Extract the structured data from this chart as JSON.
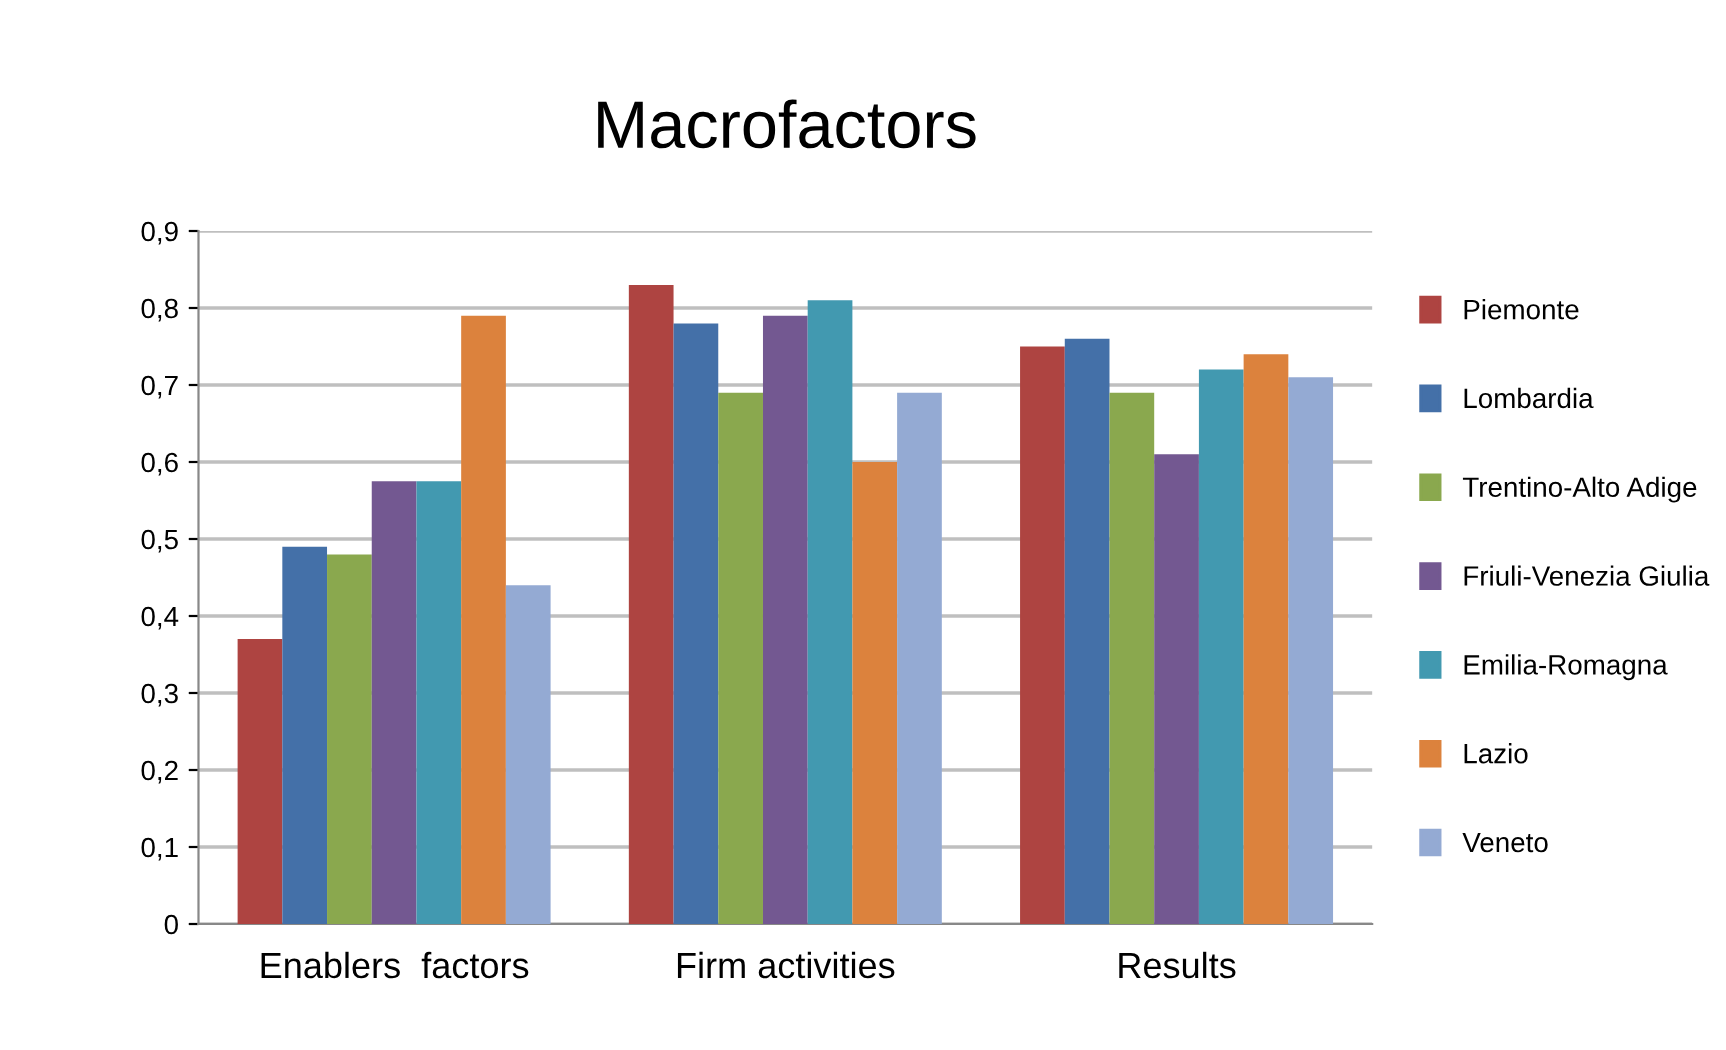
{
  "chart_data": {
    "type": "bar",
    "title": "Macrofactors",
    "categories": [
      "Enablers  factors",
      "Firm activities",
      "Results"
    ],
    "series": [
      {
        "name": "Piemonte",
        "color": "#ae4441",
        "values": [
          0.37,
          0.83,
          0.75
        ]
      },
      {
        "name": "Lombardia",
        "color": "#4470a8",
        "values": [
          0.49,
          0.78,
          0.76
        ]
      },
      {
        "name": "Trentino-Alto Adige",
        "color": "#8aa84e",
        "values": [
          0.48,
          0.69,
          0.69
        ]
      },
      {
        "name": "Friuli-Venezia Giulia",
        "color": "#735891",
        "values": [
          0.575,
          0.79,
          0.61
        ]
      },
      {
        "name": "Emilia-Romagna",
        "color": "#4299b0",
        "values": [
          0.575,
          0.81,
          0.72
        ]
      },
      {
        "name": "Lazio",
        "color": "#dc823d",
        "values": [
          0.79,
          0.6,
          0.74
        ]
      },
      {
        "name": "Veneto",
        "color": "#94aad3",
        "values": [
          0.44,
          0.69,
          0.71
        ]
      }
    ],
    "ylim": [
      0,
      0.9
    ],
    "yticks": [
      {
        "value": 0,
        "label": "0"
      },
      {
        "value": 0.1,
        "label": "0,1"
      },
      {
        "value": 0.2,
        "label": "0,2"
      },
      {
        "value": 0.3,
        "label": "0,3"
      },
      {
        "value": 0.4,
        "label": "0,4"
      },
      {
        "value": 0.5,
        "label": "0,5"
      },
      {
        "value": 0.6,
        "label": "0,6"
      },
      {
        "value": 0.7,
        "label": "0,7"
      },
      {
        "value": 0.8,
        "label": "0,8"
      },
      {
        "value": 0.9,
        "label": "0,9"
      }
    ],
    "grid": "y",
    "legend": "right"
  }
}
